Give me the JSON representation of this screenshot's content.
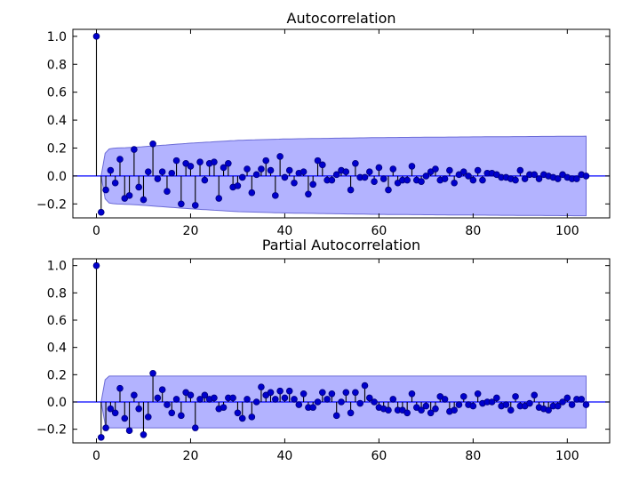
{
  "chart_data": [
    {
      "type": "stem",
      "title": "Autocorrelation",
      "xlabel": "",
      "ylabel": "",
      "xlim": [
        -5,
        109
      ],
      "ylim": [
        -0.3,
        1.05
      ],
      "xticks": [
        0,
        20,
        40,
        60,
        80,
        100
      ],
      "xtick_labels": [
        "0",
        "20",
        "40",
        "60",
        "80",
        "100"
      ],
      "yticks": [
        -0.2,
        0.0,
        0.2,
        0.4,
        0.6,
        0.8,
        1.0
      ],
      "ytick_labels": [
        "−0.2",
        "0.0",
        "0.2",
        "0.4",
        "0.6",
        "0.8",
        "1.0"
      ],
      "confidence_band": {
        "color": "#b3b3ff",
        "x": [
          1,
          2,
          4,
          8,
          12,
          16,
          20,
          30,
          40,
          50,
          60,
          80,
          104
        ],
        "half_width": [
          0.0,
          0.19,
          0.2,
          0.205,
          0.215,
          0.225,
          0.235,
          0.255,
          0.265,
          0.27,
          0.275,
          0.28,
          0.285
        ]
      },
      "series": [
        {
          "color": "#0000cd",
          "x": [
            0,
            1,
            2,
            3,
            4,
            5,
            6,
            7,
            8,
            9,
            10,
            11,
            12,
            13,
            14,
            15,
            16,
            17,
            18,
            19,
            20,
            21,
            22,
            23,
            24,
            25,
            26,
            27,
            28,
            29,
            30,
            31,
            32,
            33,
            34,
            35,
            36,
            37,
            38,
            39,
            40,
            41,
            42,
            43,
            44,
            45,
            46,
            47,
            48,
            49,
            50,
            51,
            52,
            53,
            54,
            55,
            56,
            57,
            58,
            59,
            60,
            61,
            62,
            63,
            64,
            65,
            66,
            67,
            68,
            69,
            70,
            71,
            72,
            73,
            74,
            75,
            76,
            77,
            78,
            79,
            80,
            81,
            82,
            83,
            84,
            85,
            86,
            87,
            88,
            89,
            90,
            91,
            92,
            93,
            94,
            95,
            96,
            97,
            98,
            99,
            100,
            101,
            102,
            103,
            104
          ],
          "values": [
            1.0,
            -0.26,
            -0.1,
            0.04,
            -0.05,
            0.12,
            -0.16,
            -0.14,
            0.19,
            -0.08,
            -0.17,
            0.03,
            0.23,
            -0.02,
            0.03,
            -0.11,
            0.02,
            0.11,
            -0.2,
            0.09,
            0.07,
            -0.21,
            0.1,
            -0.03,
            0.09,
            0.1,
            -0.16,
            0.06,
            0.09,
            -0.08,
            -0.07,
            -0.01,
            0.05,
            -0.12,
            0.01,
            0.05,
            0.11,
            0.04,
            -0.14,
            0.14,
            -0.01,
            0.04,
            -0.05,
            0.02,
            0.03,
            -0.13,
            -0.06,
            0.11,
            0.08,
            -0.03,
            -0.03,
            0.01,
            0.04,
            0.03,
            -0.1,
            0.09,
            -0.01,
            -0.01,
            0.03,
            -0.04,
            0.06,
            -0.02,
            -0.1,
            0.05,
            -0.05,
            -0.03,
            -0.03,
            0.07,
            -0.03,
            -0.04,
            0.0,
            0.03,
            0.05,
            -0.03,
            -0.02,
            0.04,
            -0.05,
            0.01,
            0.03,
            0.0,
            -0.03,
            0.04,
            -0.03,
            0.02,
            0.02,
            0.01,
            -0.01,
            -0.01,
            -0.02,
            -0.03,
            0.04,
            -0.02,
            0.01,
            0.01,
            -0.02,
            0.01,
            0.0,
            -0.01,
            -0.02,
            0.01,
            -0.01,
            -0.02,
            -0.02,
            0.01,
            0.0
          ]
        }
      ]
    },
    {
      "type": "stem",
      "title": "Partial Autocorrelation",
      "xlabel": "",
      "ylabel": "",
      "xlim": [
        -5,
        109
      ],
      "ylim": [
        -0.3,
        1.05
      ],
      "xticks": [
        0,
        20,
        40,
        60,
        80,
        100
      ],
      "xtick_labels": [
        "0",
        "20",
        "40",
        "60",
        "80",
        "100"
      ],
      "yticks": [
        -0.2,
        0.0,
        0.2,
        0.4,
        0.6,
        0.8,
        1.0
      ],
      "ytick_labels": [
        "−0.2",
        "0.0",
        "0.2",
        "0.4",
        "0.6",
        "0.8",
        "1.0"
      ],
      "confidence_band": {
        "color": "#b3b3ff",
        "x": [
          1,
          2,
          104
        ],
        "half_width": [
          0.0,
          0.19,
          0.19
        ]
      },
      "series": [
        {
          "color": "#0000cd",
          "x": [
            0,
            1,
            2,
            3,
            4,
            5,
            6,
            7,
            8,
            9,
            10,
            11,
            12,
            13,
            14,
            15,
            16,
            17,
            18,
            19,
            20,
            21,
            22,
            23,
            24,
            25,
            26,
            27,
            28,
            29,
            30,
            31,
            32,
            33,
            34,
            35,
            36,
            37,
            38,
            39,
            40,
            41,
            42,
            43,
            44,
            45,
            46,
            47,
            48,
            49,
            50,
            51,
            52,
            53,
            54,
            55,
            56,
            57,
            58,
            59,
            60,
            61,
            62,
            63,
            64,
            65,
            66,
            67,
            68,
            69,
            70,
            71,
            72,
            73,
            74,
            75,
            76,
            77,
            78,
            79,
            80,
            81,
            82,
            83,
            84,
            85,
            86,
            87,
            88,
            89,
            90,
            91,
            92,
            93,
            94,
            95,
            96,
            97,
            98,
            99,
            100,
            101,
            102,
            103,
            104
          ],
          "values": [
            1.0,
            -0.26,
            -0.19,
            -0.05,
            -0.08,
            0.1,
            -0.12,
            -0.21,
            0.05,
            -0.05,
            -0.24,
            -0.11,
            0.21,
            0.03,
            0.09,
            -0.02,
            -0.08,
            0.02,
            -0.1,
            0.07,
            0.05,
            -0.19,
            0.02,
            0.05,
            0.02,
            0.03,
            -0.05,
            -0.04,
            0.03,
            0.03,
            -0.08,
            -0.12,
            0.02,
            -0.11,
            0.0,
            0.11,
            0.05,
            0.07,
            0.02,
            0.08,
            0.03,
            0.08,
            0.02,
            -0.02,
            0.06,
            -0.04,
            -0.04,
            0.0,
            0.07,
            0.02,
            0.06,
            -0.1,
            0.0,
            0.07,
            -0.08,
            0.07,
            -0.01,
            0.12,
            0.03,
            0.0,
            -0.04,
            -0.05,
            -0.06,
            0.02,
            -0.06,
            -0.06,
            -0.08,
            0.06,
            -0.04,
            -0.06,
            -0.03,
            -0.08,
            -0.05,
            0.04,
            0.02,
            -0.07,
            -0.06,
            -0.02,
            0.04,
            -0.02,
            -0.03,
            0.06,
            -0.01,
            0.0,
            0.0,
            0.03,
            -0.03,
            -0.02,
            -0.06,
            0.04,
            -0.03,
            -0.03,
            -0.01,
            0.05,
            -0.04,
            -0.05,
            -0.06,
            -0.03,
            -0.03,
            0.0,
            0.03,
            -0.02,
            0.02,
            0.02,
            -0.02
          ]
        }
      ]
    }
  ]
}
